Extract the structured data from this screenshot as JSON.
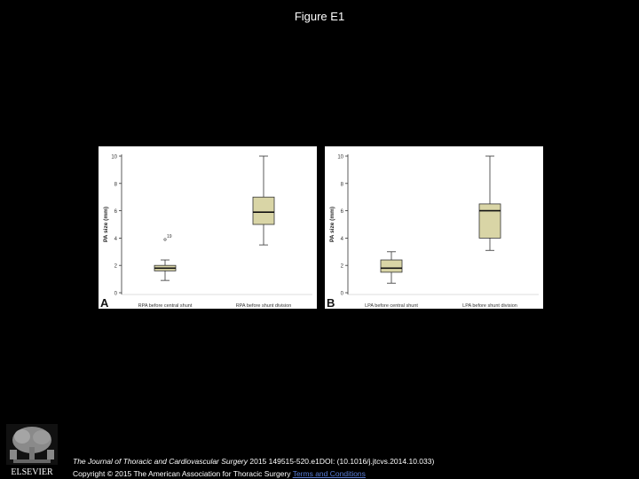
{
  "page": {
    "title": "Figure E1"
  },
  "chart_data": [
    {
      "type": "box",
      "panel_label": "A",
      "ylabel": "PA size (mm)",
      "ylim": [
        0,
        10
      ],
      "yticks": [
        0,
        2,
        4,
        6,
        8,
        10
      ],
      "categories": [
        "RPA before central shunt",
        "RPA before shunt division"
      ],
      "boxes": [
        {
          "min": 0.9,
          "q1": 1.6,
          "median": 1.8,
          "q3": 2.0,
          "max": 2.4,
          "outliers": [
            {
              "value": 3.9,
              "label": "19"
            }
          ]
        },
        {
          "min": 3.5,
          "q1": 5.0,
          "median": 5.9,
          "q3": 7.0,
          "max": 10.0,
          "outliers": []
        }
      ],
      "box_color": "#d9d5a6",
      "grid": false
    },
    {
      "type": "box",
      "panel_label": "B",
      "ylabel": "PA size (mm)",
      "ylim": [
        0,
        10
      ],
      "yticks": [
        0,
        2,
        4,
        6,
        8,
        10
      ],
      "categories": [
        "LPA before central shunt",
        "LPA before shunt division"
      ],
      "boxes": [
        {
          "min": 0.7,
          "q1": 1.5,
          "median": 1.8,
          "q3": 2.4,
          "max": 3.0,
          "outliers": []
        },
        {
          "min": 3.1,
          "q1": 4.0,
          "median": 6.0,
          "q3": 6.5,
          "max": 10.0,
          "outliers": []
        }
      ],
      "box_color": "#d9d5a6",
      "grid": false
    }
  ],
  "footer": {
    "journal": "The Journal of Thoracic and Cardiovascular Surgery",
    "citation": " 2015 149515-520.e1DOI: (10.1016/j.jtcvs.2014.10.033)",
    "copyright": "Copyright © 2015 The American Association for Thoracic Surgery ",
    "terms": "Terms and Conditions"
  },
  "logo": {
    "text": "ELSEVIER"
  }
}
